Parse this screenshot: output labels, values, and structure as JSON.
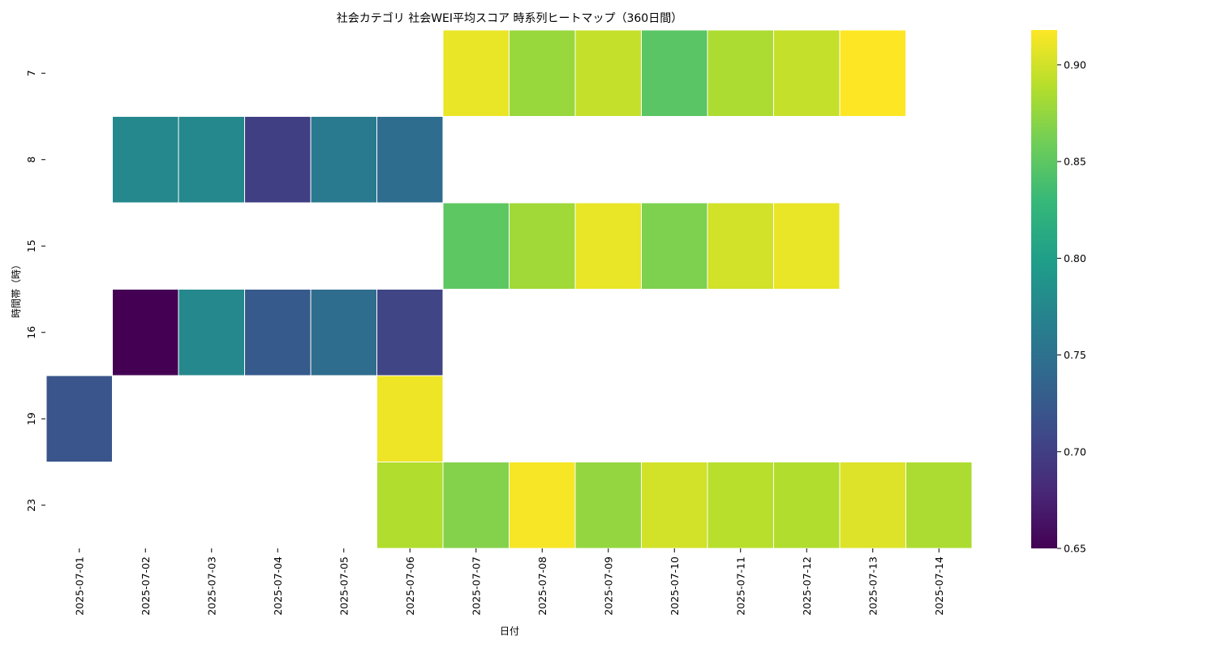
{
  "chart_data": {
    "type": "heatmap",
    "title": "社会カテゴリ 社会WEI平均スコア 時系列ヒートマップ（360日間）",
    "xlabel": "日付",
    "ylabel": "時間帯（時）",
    "x": [
      "2025-07-01",
      "2025-07-02",
      "2025-07-03",
      "2025-07-04",
      "2025-07-05",
      "2025-07-06",
      "2025-07-07",
      "2025-07-08",
      "2025-07-09",
      "2025-07-10",
      "2025-07-11",
      "2025-07-12",
      "2025-07-13",
      "2025-07-14"
    ],
    "y": [
      "7",
      "8",
      "15",
      "16",
      "19",
      "23"
    ],
    "values": [
      [
        null,
        null,
        null,
        null,
        null,
        null,
        0.91,
        0.877,
        0.895,
        0.848,
        0.885,
        0.895,
        0.918,
        null
      ],
      [
        null,
        0.775,
        0.775,
        0.7,
        0.76,
        0.745,
        null,
        null,
        null,
        null,
        null,
        null,
        null,
        null
      ],
      [
        null,
        null,
        null,
        null,
        null,
        null,
        0.85,
        0.88,
        0.91,
        0.865,
        0.9,
        0.91,
        null,
        null
      ],
      [
        null,
        0.65,
        0.775,
        0.725,
        0.745,
        0.705,
        null,
        null,
        null,
        null,
        null,
        null,
        null,
        null
      ],
      [
        0.72,
        null,
        null,
        null,
        null,
        0.912,
        null,
        null,
        null,
        null,
        null,
        null,
        null,
        null
      ],
      [
        null,
        null,
        null,
        null,
        null,
        0.887,
        0.868,
        0.915,
        0.875,
        0.9,
        0.89,
        0.887,
        0.905,
        0.885
      ]
    ],
    "colorscale": "viridis",
    "colorbar": {
      "min": 0.65,
      "max": 0.918,
      "ticks": [
        "0.65",
        "0.70",
        "0.75",
        "0.80",
        "0.85",
        "0.90"
      ]
    },
    "grid": false
  }
}
